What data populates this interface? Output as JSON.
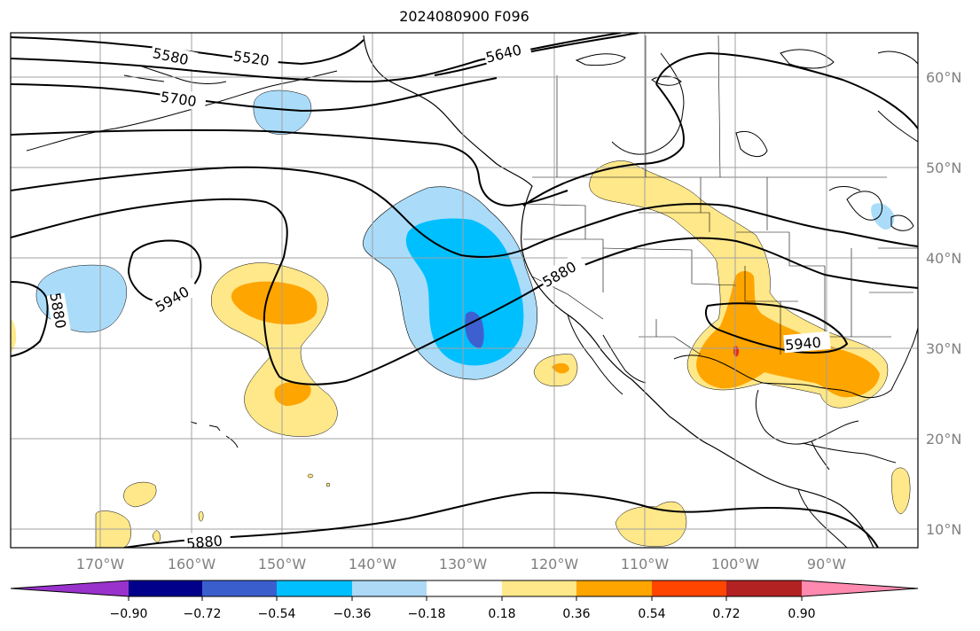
{
  "title": "2024080900 F096",
  "map": {
    "lon_labels": [
      "170°W",
      "160°W",
      "150°W",
      "140°W",
      "130°W",
      "120°W",
      "110°W",
      "100°W",
      "90°W"
    ],
    "lat_labels": [
      "60°N",
      "50°N",
      "40°N",
      "30°N",
      "20°N",
      "10°N"
    ],
    "contour_labels": [
      "5580",
      "5520",
      "5640",
      "5700",
      "5880",
      "5940",
      "5880",
      "5940",
      "5880"
    ],
    "colors": {
      "contour": "#000000",
      "grid": "#a0a0a0",
      "coast": "#000000",
      "light_blue": "#aadcfa",
      "deep_sky": "#00bfff",
      "royal_blue": "#3e5fcf",
      "light_yellow": "#ffe88a",
      "orange": "#ffa500",
      "red": "#e03020"
    }
  },
  "colorbar": {
    "tick_labels": [
      "−0.90",
      "−0.72",
      "−0.54",
      "−0.36",
      "−0.18",
      "0.18",
      "0.36",
      "0.54",
      "0.72",
      "0.90"
    ],
    "colors": [
      "#9932cc",
      "#00008b",
      "#3a5fcd",
      "#00bfff",
      "#add8f6",
      "#ffffff",
      "#ffe88a",
      "#ffa500",
      "#ff4500",
      "#b22222",
      "#ff8ab0"
    ]
  }
}
